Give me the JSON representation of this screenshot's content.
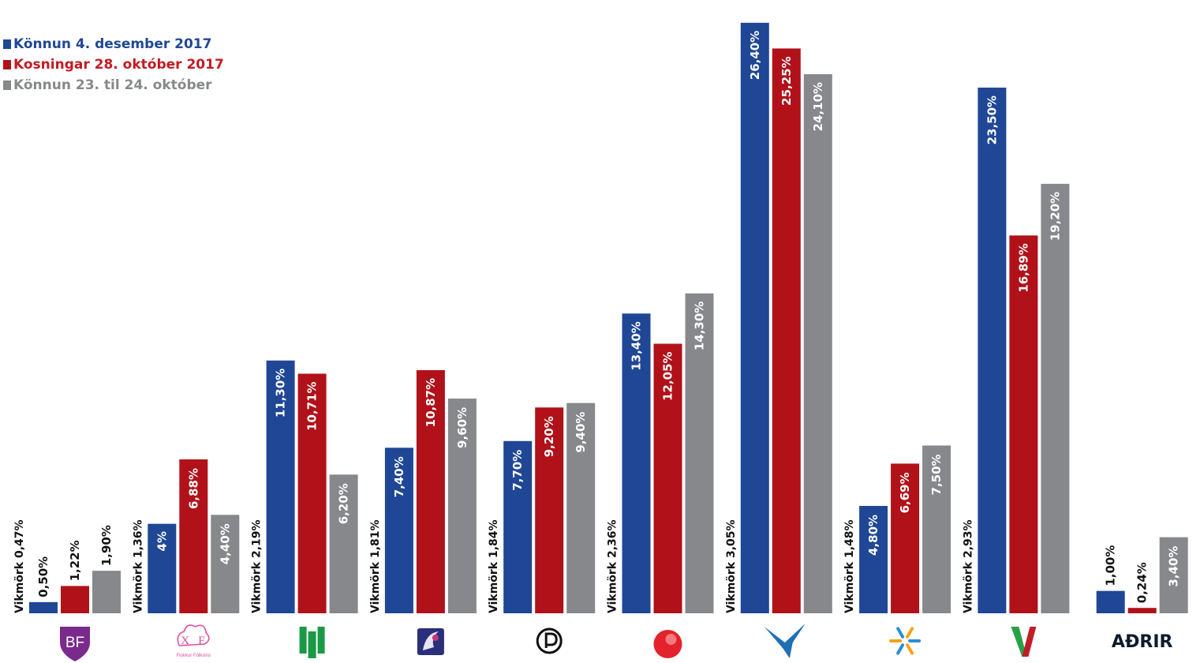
{
  "chart_data": {
    "type": "bar",
    "title": "",
    "xlabel": "",
    "ylabel": "",
    "ylim": [
      0,
      27.1
    ],
    "grid": false,
    "legend_position": "top-left",
    "series": [
      {
        "name": "Könnun 4. desember 2017",
        "color": "#1f4796",
        "values": [
          0.5,
          4,
          11.3,
          7.4,
          7.7,
          13.4,
          26.4,
          4.8,
          23.5,
          1.0
        ],
        "labels": [
          "0,50%",
          "4%",
          "11,30%",
          "7,40%",
          "7,70%",
          "13,40%",
          "26,40%",
          "4,80%",
          "23,50%",
          "1,00%"
        ]
      },
      {
        "name": "Kosningar 28. október 2017",
        "color": "#b11119",
        "values": [
          1.22,
          6.88,
          10.71,
          10.87,
          9.2,
          12.05,
          25.25,
          6.69,
          16.89,
          0.24
        ],
        "labels": [
          "1,22%",
          "6,88%",
          "10,71%",
          "10,87%",
          "9,20%",
          "12,05%",
          "25,25%",
          "6,69%",
          "16,89%",
          "0,24%"
        ]
      },
      {
        "name": "Könnun 23. til 24. október",
        "color": "#87888b",
        "values": [
          1.9,
          4.4,
          6.2,
          9.6,
          9.4,
          14.3,
          24.1,
          7.5,
          19.2,
          3.4
        ],
        "labels": [
          "1,90%",
          "4,40%",
          "6,20%",
          "9,60%",
          "9,40%",
          "14,30%",
          "24,10%",
          "7,50%",
          "19,20%",
          "3,40%"
        ]
      }
    ],
    "margins": [
      "Vikmörk 0,47%",
      "Vikmörk 1,36%",
      "Vikmörk 2,19%",
      "Vikmörk 1,81%",
      "Vikmörk 1,84%",
      "Vikmörk 2,36%",
      "Vikmörk 3,05%",
      "Vikmörk 1,48%",
      "Vikmörk 2,93%",
      ""
    ],
    "categories": [
      {
        "icon": "bf-shield-logo",
        "text": "BF",
        "color": "#7a2a8c"
      },
      {
        "icon": "flokkur-folksins-logo",
        "text": "Flokkur Fólksins",
        "color": "#e0499b"
      },
      {
        "icon": "green-book-logo",
        "text": "",
        "color": "#1a9a45"
      },
      {
        "icon": "viðreisn-logo",
        "text": "",
        "color": "#4a3f9a"
      },
      {
        "icon": "pirate-flag-logo",
        "text": "",
        "color": "#111111"
      },
      {
        "icon": "red-sphere-logo",
        "text": "",
        "color": "#e4222b"
      },
      {
        "icon": "falcon-logo",
        "text": "",
        "color": "#1e6fb6"
      },
      {
        "icon": "snowflake-logo",
        "text": "",
        "color": "#2c8fd0"
      },
      {
        "icon": "v-logo",
        "text": "",
        "color": "#c01d2a"
      },
      {
        "icon": "others-text",
        "text": "AÐRIR",
        "color": "#0d1c2e"
      }
    ]
  }
}
